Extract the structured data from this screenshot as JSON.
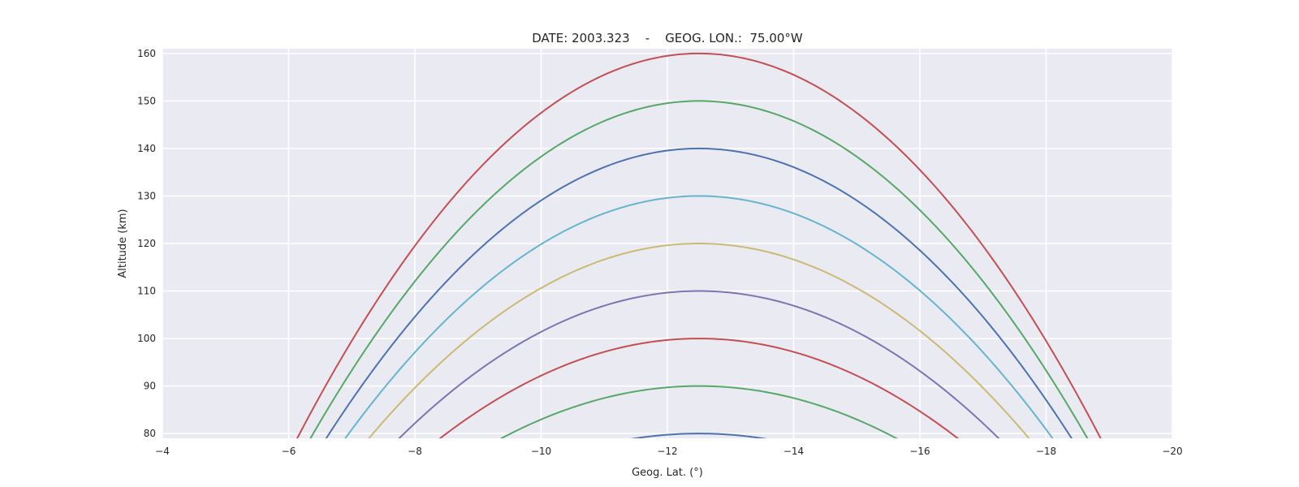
{
  "chart_data": {
    "type": "line",
    "title": "DATE: 2003.323    -    GEOG. LON.:  75.00°W",
    "xlabel": "Geog. Lat. (°)",
    "ylabel": "Altitude (km)",
    "xlim": [
      -4,
      -20
    ],
    "ylim": [
      79,
      161
    ],
    "x_ticks": [
      -4,
      -6,
      -8,
      -10,
      -12,
      -14,
      -16,
      -18,
      -20
    ],
    "x_tick_labels": [
      "−4",
      "−6",
      "−8",
      "−10",
      "−12",
      "−14",
      "−16",
      "−18",
      "−20"
    ],
    "y_ticks": [
      80,
      90,
      100,
      110,
      120,
      130,
      140,
      150,
      160
    ],
    "y_tick_labels": [
      "80",
      "90",
      "100",
      "110",
      "120",
      "130",
      "140",
      "150",
      "160"
    ],
    "grid": true,
    "apex_lat": -12.5,
    "series": [
      {
        "name": "apex 80 km",
        "apex_altitude": 80,
        "color": "#4c72b0"
      },
      {
        "name": "apex 90 km",
        "apex_altitude": 90,
        "color": "#55a868"
      },
      {
        "name": "apex 100 km",
        "apex_altitude": 100,
        "color": "#c44e52"
      },
      {
        "name": "apex 110 km",
        "apex_altitude": 110,
        "color": "#8172b2"
      },
      {
        "name": "apex 120 km",
        "apex_altitude": 120,
        "color": "#ccb974"
      },
      {
        "name": "apex 130 km",
        "apex_altitude": 130,
        "color": "#64b5cd"
      },
      {
        "name": "apex 140 km",
        "apex_altitude": 140,
        "color": "#4c72b0"
      },
      {
        "name": "apex 150 km",
        "apex_altitude": 150,
        "color": "#55a868"
      },
      {
        "name": "apex 160 km",
        "apex_altitude": 160,
        "color": "#c44e52"
      }
    ]
  }
}
